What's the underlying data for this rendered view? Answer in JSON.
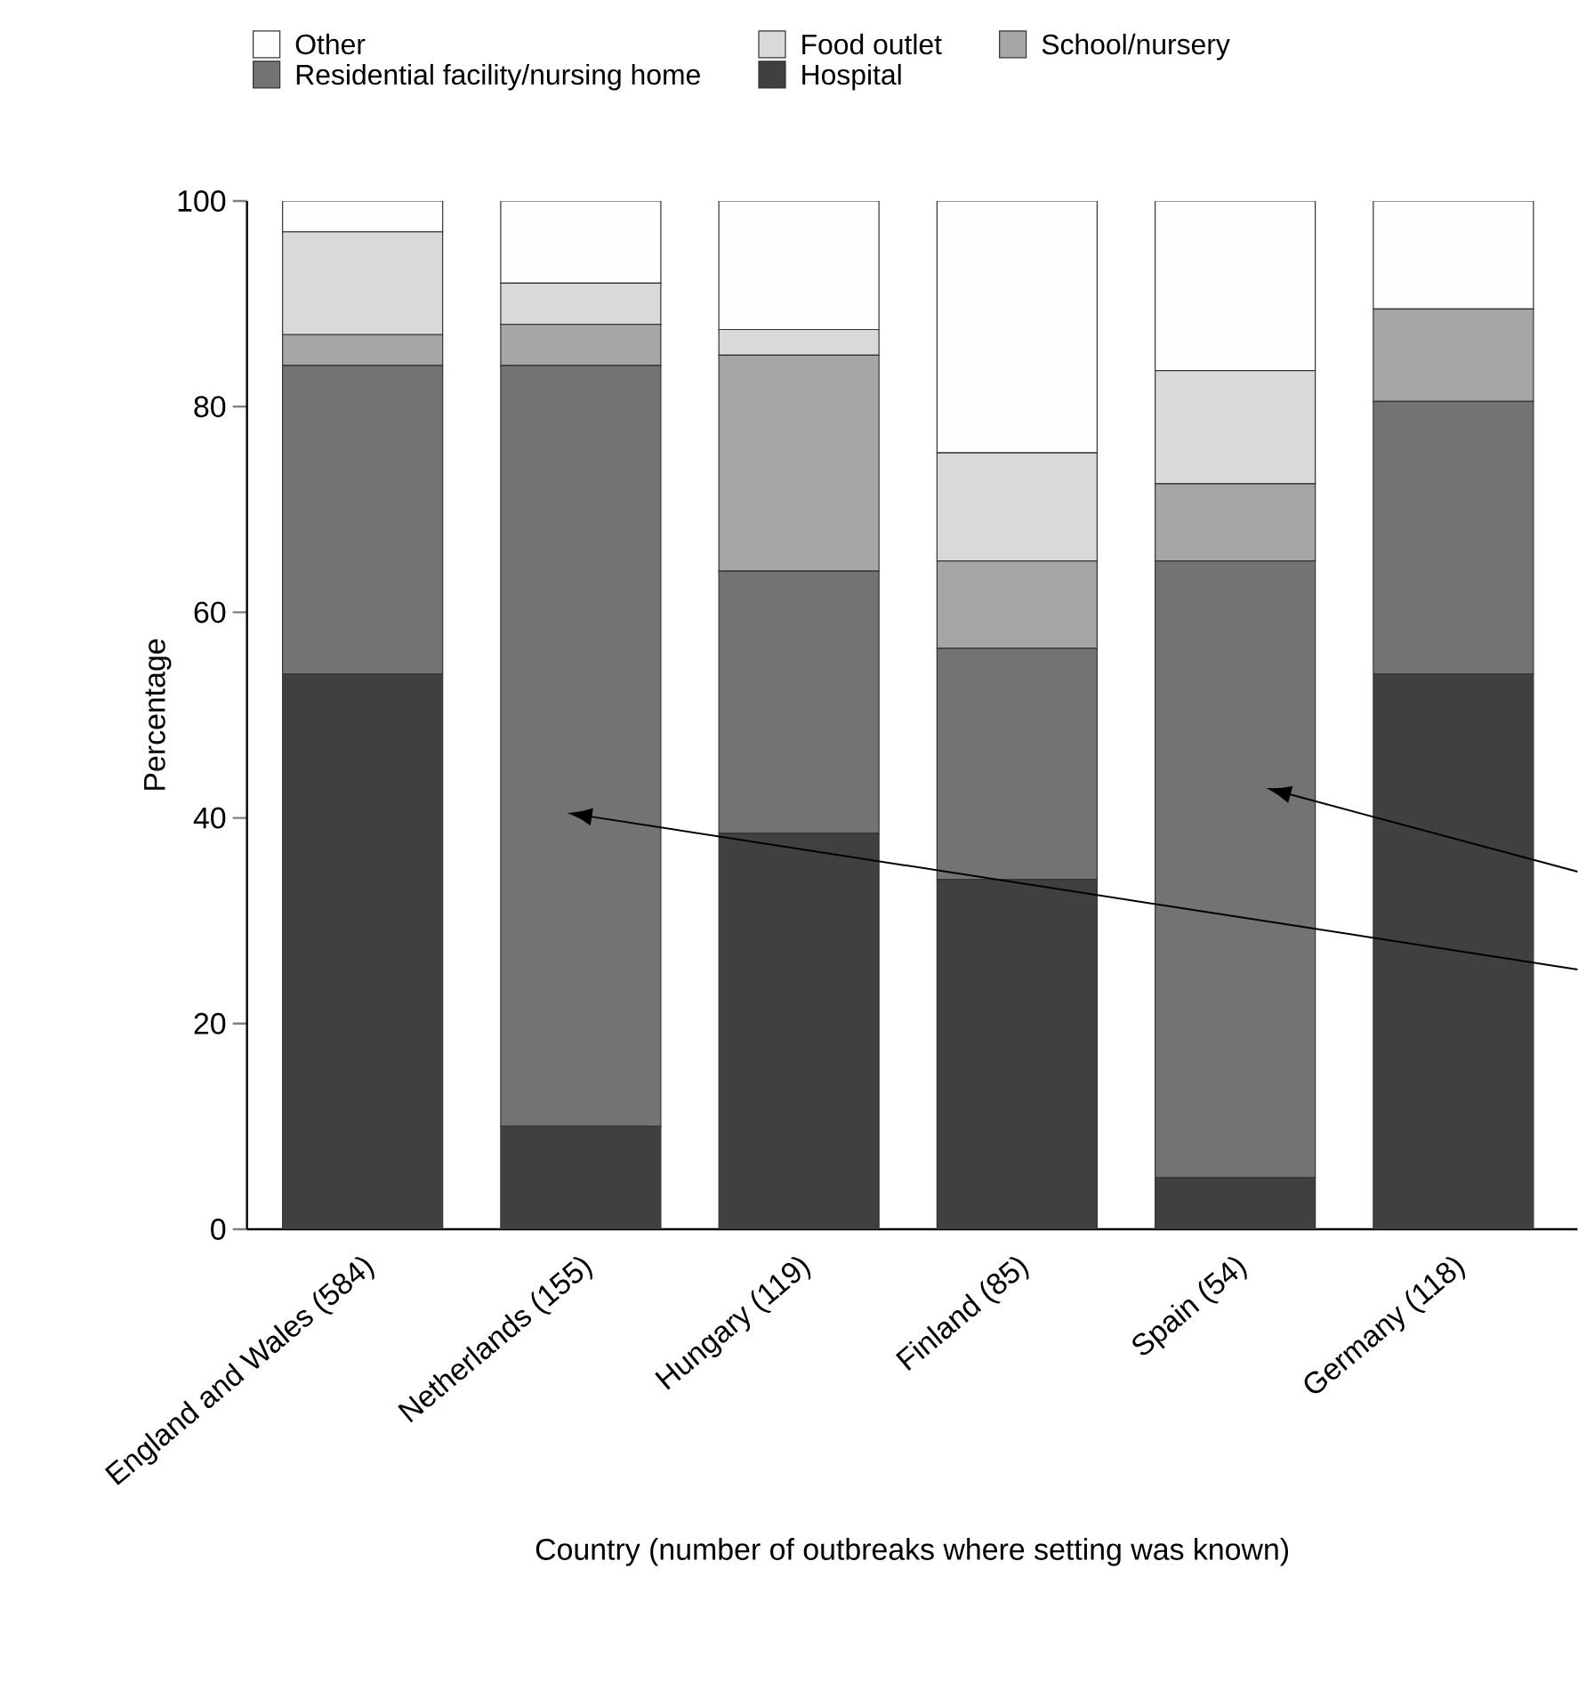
{
  "chart_data": {
    "type": "bar",
    "stacked": true,
    "xlabel": "Country (number of outbreaks where setting was known)",
    "ylabel": "Percentage",
    "categories": [
      "England and Wales (584)",
      "Netherlands (155)",
      "Hungary (119)",
      "Finland (85)",
      "Spain (54)",
      "Germany (118)"
    ],
    "series": [
      {
        "name": "Hospital",
        "color": "#404040",
        "values": [
          54,
          10,
          38.5,
          34,
          5,
          54
        ]
      },
      {
        "name": "Residential facility/nursing home",
        "color": "#737373",
        "values": [
          30,
          74,
          25.5,
          22.5,
          60,
          26.5
        ]
      },
      {
        "name": "School/nursery",
        "color": "#a6a6a6",
        "values": [
          3,
          4,
          21,
          8.5,
          7.5,
          9
        ]
      },
      {
        "name": "Food outlet",
        "color": "#d9d9d9",
        "values": [
          10,
          4,
          2.5,
          10.5,
          11,
          0
        ]
      },
      {
        "name": "Other",
        "color": "#fefefe",
        "values": [
          3,
          8,
          12.5,
          24.5,
          16.5,
          10.5
        ]
      }
    ],
    "ylim": [
      0,
      100
    ],
    "yticks": [
      0,
      20,
      40,
      60,
      80,
      100
    ],
    "legend": "top",
    "grid": false
  }
}
